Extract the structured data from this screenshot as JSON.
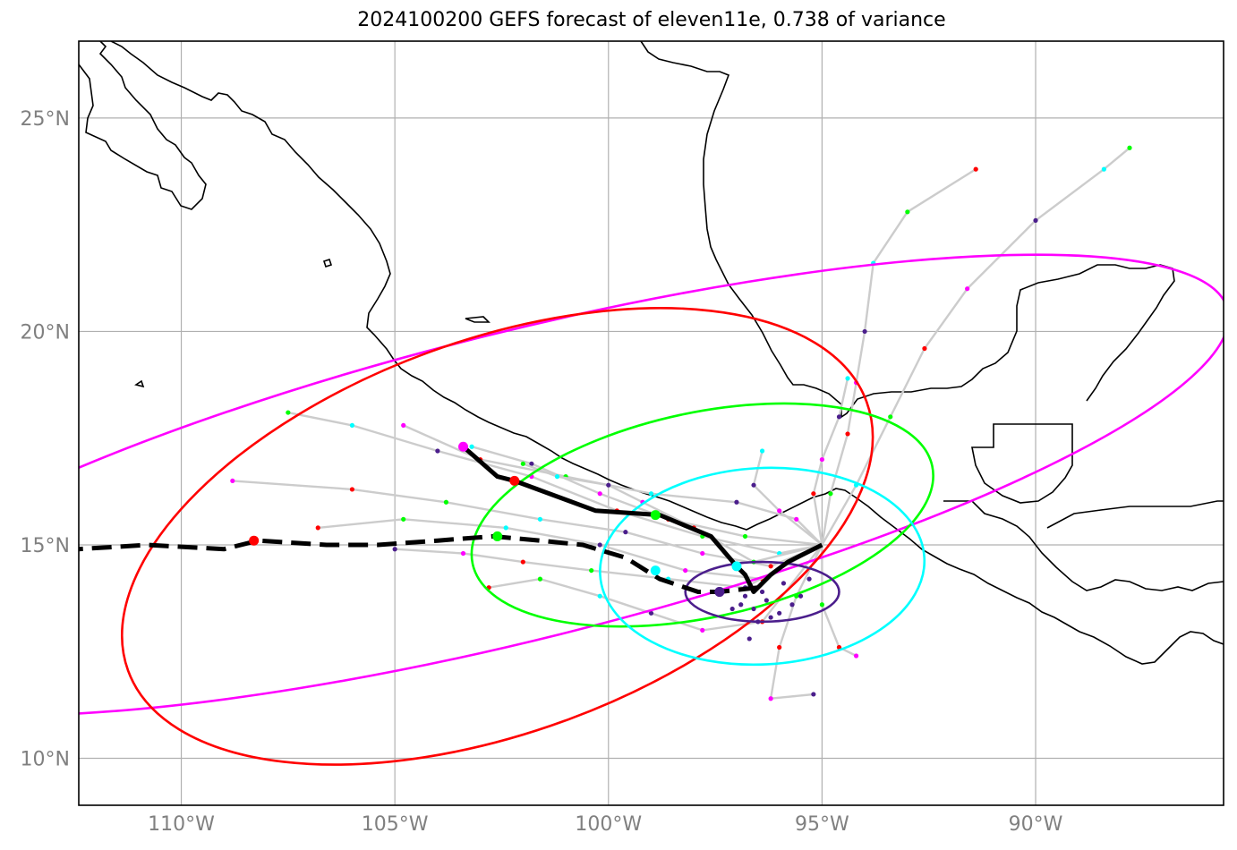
{
  "title": "2024100200 GEFS forecast of eleven11e, 0.738 of variance",
  "axes": {
    "lon_ticks": [
      "110°W",
      "105°W",
      "100°W",
      "95°W",
      "90°W"
    ],
    "lat_ticks": [
      "25°N",
      "20°N",
      "15°N",
      "10°N"
    ],
    "lon_range": [
      -112.4,
      -85.6
    ],
    "lat_range": [
      8.9,
      26.8
    ],
    "grid": true
  },
  "colors": {
    "coast": "#000000",
    "ensemble_member": "#cccccc",
    "mean_track": "#000000",
    "ellipses": [
      "#ff00ff",
      "#ff0000",
      "#00ff00",
      "#00ffff",
      "#4b1e8c"
    ]
  },
  "chart_data": {
    "type": "map",
    "title": "2024100200 GEFS forecast of eleven11e, 0.738 of variance",
    "tracks": {
      "solid_mean": [
        [
          -95.0,
          15.0
        ],
        [
          -95.8,
          14.6
        ],
        [
          -96.2,
          14.3
        ],
        [
          -96.6,
          13.9
        ],
        [
          -96.8,
          14.3
        ],
        [
          -97.0,
          14.5
        ],
        [
          -97.6,
          15.2
        ],
        [
          -98.8,
          15.7
        ],
        [
          -100.3,
          15.8
        ],
        [
          -102.2,
          16.5
        ],
        [
          -102.6,
          16.6
        ],
        [
          -103.4,
          17.3
        ]
      ],
      "dashed_mean": [
        [
          -96.5,
          14.0
        ],
        [
          -97.4,
          13.9
        ],
        [
          -97.9,
          13.9
        ],
        [
          -98.8,
          14.2
        ],
        [
          -99.6,
          14.7
        ],
        [
          -100.6,
          15.0
        ],
        [
          -101.6,
          15.1
        ],
        [
          -102.7,
          15.2
        ],
        [
          -104.0,
          15.1
        ],
        [
          -105.4,
          15.0
        ],
        [
          -106.6,
          15.0
        ],
        [
          -108.2,
          15.1
        ],
        [
          -109.0,
          14.9
        ],
        [
          -110.8,
          15.0
        ],
        [
          -112.4,
          14.9
        ]
      ],
      "markers": [
        {
          "lon": -103.4,
          "lat": 17.3,
          "color": "#ff00ff"
        },
        {
          "lon": -102.2,
          "lat": 16.5,
          "color": "#ff0000"
        },
        {
          "lon": -98.9,
          "lat": 15.7,
          "color": "#00ff00"
        },
        {
          "lon": -97.0,
          "lat": 14.5,
          "color": "#00ffff"
        },
        {
          "lon": -97.4,
          "lat": 13.9,
          "color": "#4b1e8c"
        },
        {
          "lon": -108.3,
          "lat": 15.1,
          "color": "#ff0000"
        },
        {
          "lon": -102.6,
          "lat": 15.2,
          "color": "#00ff00"
        },
        {
          "lon": -98.9,
          "lat": 14.4,
          "color": "#00ffff"
        },
        {
          "lon": -97.4,
          "lat": 13.9,
          "color": "#4b1e8c"
        }
      ]
    },
    "ellipses": [
      {
        "color": "#ff00ff",
        "center": [
          -102.0,
          16.4
        ],
        "rx_deg": 17.0,
        "ry_deg": 3.6,
        "angle_deg": -14
      },
      {
        "color": "#ff0000",
        "center": [
          -102.6,
          15.2
        ],
        "rx_deg": 9.2,
        "ry_deg": 4.6,
        "angle_deg": -20
      },
      {
        "color": "#00ff00",
        "center": [
          -97.8,
          15.7
        ],
        "rx_deg": 5.5,
        "ry_deg": 2.4,
        "angle_deg": -12
      },
      {
        "color": "#00ffff",
        "center": [
          -96.4,
          14.5
        ],
        "rx_deg": 3.8,
        "ry_deg": 2.3,
        "angle_deg": -3
      },
      {
        "color": "#4b1e8c",
        "center": [
          -96.4,
          13.9
        ],
        "rx_deg": 1.8,
        "ry_deg": 0.7,
        "angle_deg": 0
      }
    ],
    "members": [
      [
        [
          -95.0,
          15.0
        ],
        [
          -96.2,
          14.5
        ],
        [
          -97.8,
          14.8
        ],
        [
          -99.6,
          15.3
        ],
        [
          -101.6,
          15.6
        ],
        [
          -103.8,
          16.0
        ],
        [
          -106.0,
          16.3
        ],
        [
          -108.8,
          16.5
        ]
      ],
      [
        [
          -95.0,
          15.0
        ],
        [
          -96.4,
          14.2
        ],
        [
          -98.2,
          14.4
        ],
        [
          -100.2,
          15.0
        ],
        [
          -102.4,
          15.4
        ],
        [
          -104.8,
          15.6
        ],
        [
          -106.8,
          15.4
        ]
      ],
      [
        [
          -95.0,
          15.0
        ],
        [
          -96.0,
          14.8
        ],
        [
          -97.8,
          15.2
        ],
        [
          -99.8,
          15.8
        ],
        [
          -101.8,
          16.6
        ],
        [
          -104.0,
          17.2
        ],
        [
          -106.0,
          17.8
        ],
        [
          -107.5,
          18.1
        ]
      ],
      [
        [
          -95.0,
          15.0
        ],
        [
          -96.8,
          15.2
        ],
        [
          -98.6,
          15.6
        ],
        [
          -100.2,
          16.2
        ],
        [
          -101.8,
          16.9
        ],
        [
          -103.2,
          17.3
        ]
      ],
      [
        [
          -95.0,
          15.0
        ],
        [
          -96.8,
          14.0
        ],
        [
          -98.6,
          14.2
        ],
        [
          -100.4,
          14.4
        ],
        [
          -102.0,
          14.6
        ],
        [
          -103.4,
          14.8
        ],
        [
          -105.0,
          14.9
        ]
      ],
      [
        [
          -95.0,
          15.0
        ],
        [
          -95.6,
          15.6
        ],
        [
          -97.0,
          16.0
        ],
        [
          -99.0,
          16.2
        ],
        [
          -101.0,
          16.6
        ],
        [
          -103.0,
          17.0
        ],
        [
          -104.8,
          17.8
        ]
      ],
      [
        [
          -95.0,
          15.0
        ],
        [
          -94.8,
          16.2
        ],
        [
          -94.4,
          17.6
        ],
        [
          -94.2,
          18.8
        ],
        [
          -94.0,
          20.0
        ],
        [
          -93.8,
          21.6
        ],
        [
          -93.0,
          22.8
        ],
        [
          -91.4,
          23.8
        ]
      ],
      [
        [
          -95.0,
          15.0
        ],
        [
          -94.2,
          16.4
        ],
        [
          -93.4,
          18.0
        ],
        [
          -92.6,
          19.6
        ],
        [
          -91.6,
          21.0
        ],
        [
          -90.0,
          22.6
        ],
        [
          -88.4,
          23.8
        ],
        [
          -87.8,
          24.3
        ]
      ],
      [
        [
          -95.0,
          15.0
        ],
        [
          -95.2,
          16.2
        ],
        [
          -95.0,
          17.0
        ],
        [
          -94.6,
          18.0
        ],
        [
          -94.4,
          18.9
        ]
      ],
      [
        [
          -95.0,
          15.0
        ],
        [
          -95.6,
          13.8
        ],
        [
          -96.0,
          12.6
        ],
        [
          -96.2,
          11.4
        ],
        [
          -95.2,
          11.5
        ]
      ],
      [
        [
          -95.0,
          15.0
        ],
        [
          -95.0,
          13.6
        ],
        [
          -94.6,
          12.6
        ],
        [
          -94.2,
          12.4
        ]
      ],
      [
        [
          -95.0,
          15.0
        ],
        [
          -96.4,
          13.2
        ],
        [
          -97.8,
          13.0
        ],
        [
          -99.0,
          13.4
        ],
        [
          -100.2,
          13.8
        ],
        [
          -101.6,
          14.2
        ],
        [
          -102.8,
          14.0
        ]
      ],
      [
        [
          -95.0,
          15.0
        ],
        [
          -96.6,
          14.6
        ],
        [
          -98.0,
          15.4
        ],
        [
          -99.2,
          16.0
        ],
        [
          -100.0,
          16.4
        ],
        [
          -101.2,
          16.6
        ],
        [
          -102.0,
          16.9
        ]
      ],
      [
        [
          -95.0,
          15.0
        ],
        [
          -96.0,
          15.8
        ],
        [
          -96.6,
          16.4
        ],
        [
          -96.4,
          17.2
        ]
      ]
    ]
  }
}
